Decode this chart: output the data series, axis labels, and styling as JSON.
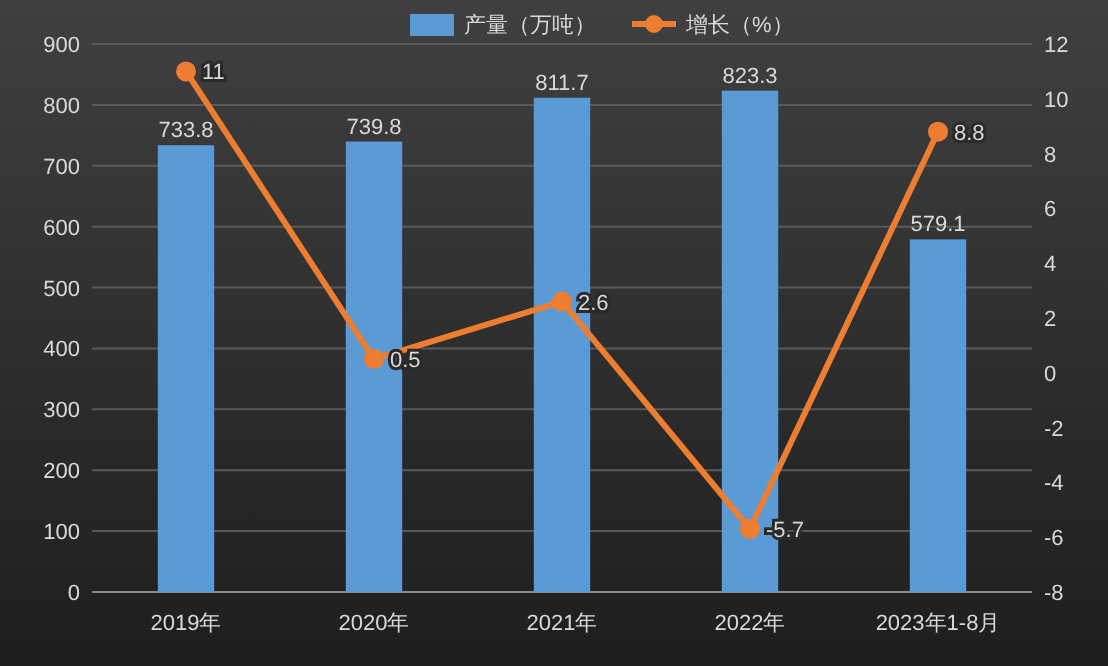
{
  "chart_data": {
    "type": "bar",
    "categories": [
      "2019年",
      "2020年",
      "2021年",
      "2022年",
      "2023年1-8月"
    ],
    "series": [
      {
        "name": "产量（万吨）",
        "color": "#5b9bd5",
        "values": [
          733.8,
          739.8,
          811.7,
          823.3,
          579.1
        ]
      },
      {
        "name": "增长（%）",
        "type": "line",
        "axis": "y2",
        "color": "#ed7d31",
        "marker": "circle",
        "values": [
          11,
          0.5,
          2.6,
          -5.7,
          8.8
        ]
      }
    ],
    "ylim": [
      0,
      900
    ],
    "yticks": [
      0,
      100,
      200,
      300,
      400,
      500,
      600,
      700,
      800,
      900
    ],
    "y2lim": [
      -8,
      12
    ],
    "y2ticks": [
      -8,
      -6,
      -4,
      -2,
      0,
      2,
      4,
      6,
      8,
      10,
      12
    ],
    "grid": "y",
    "legend": "top",
    "data_labels": true
  }
}
